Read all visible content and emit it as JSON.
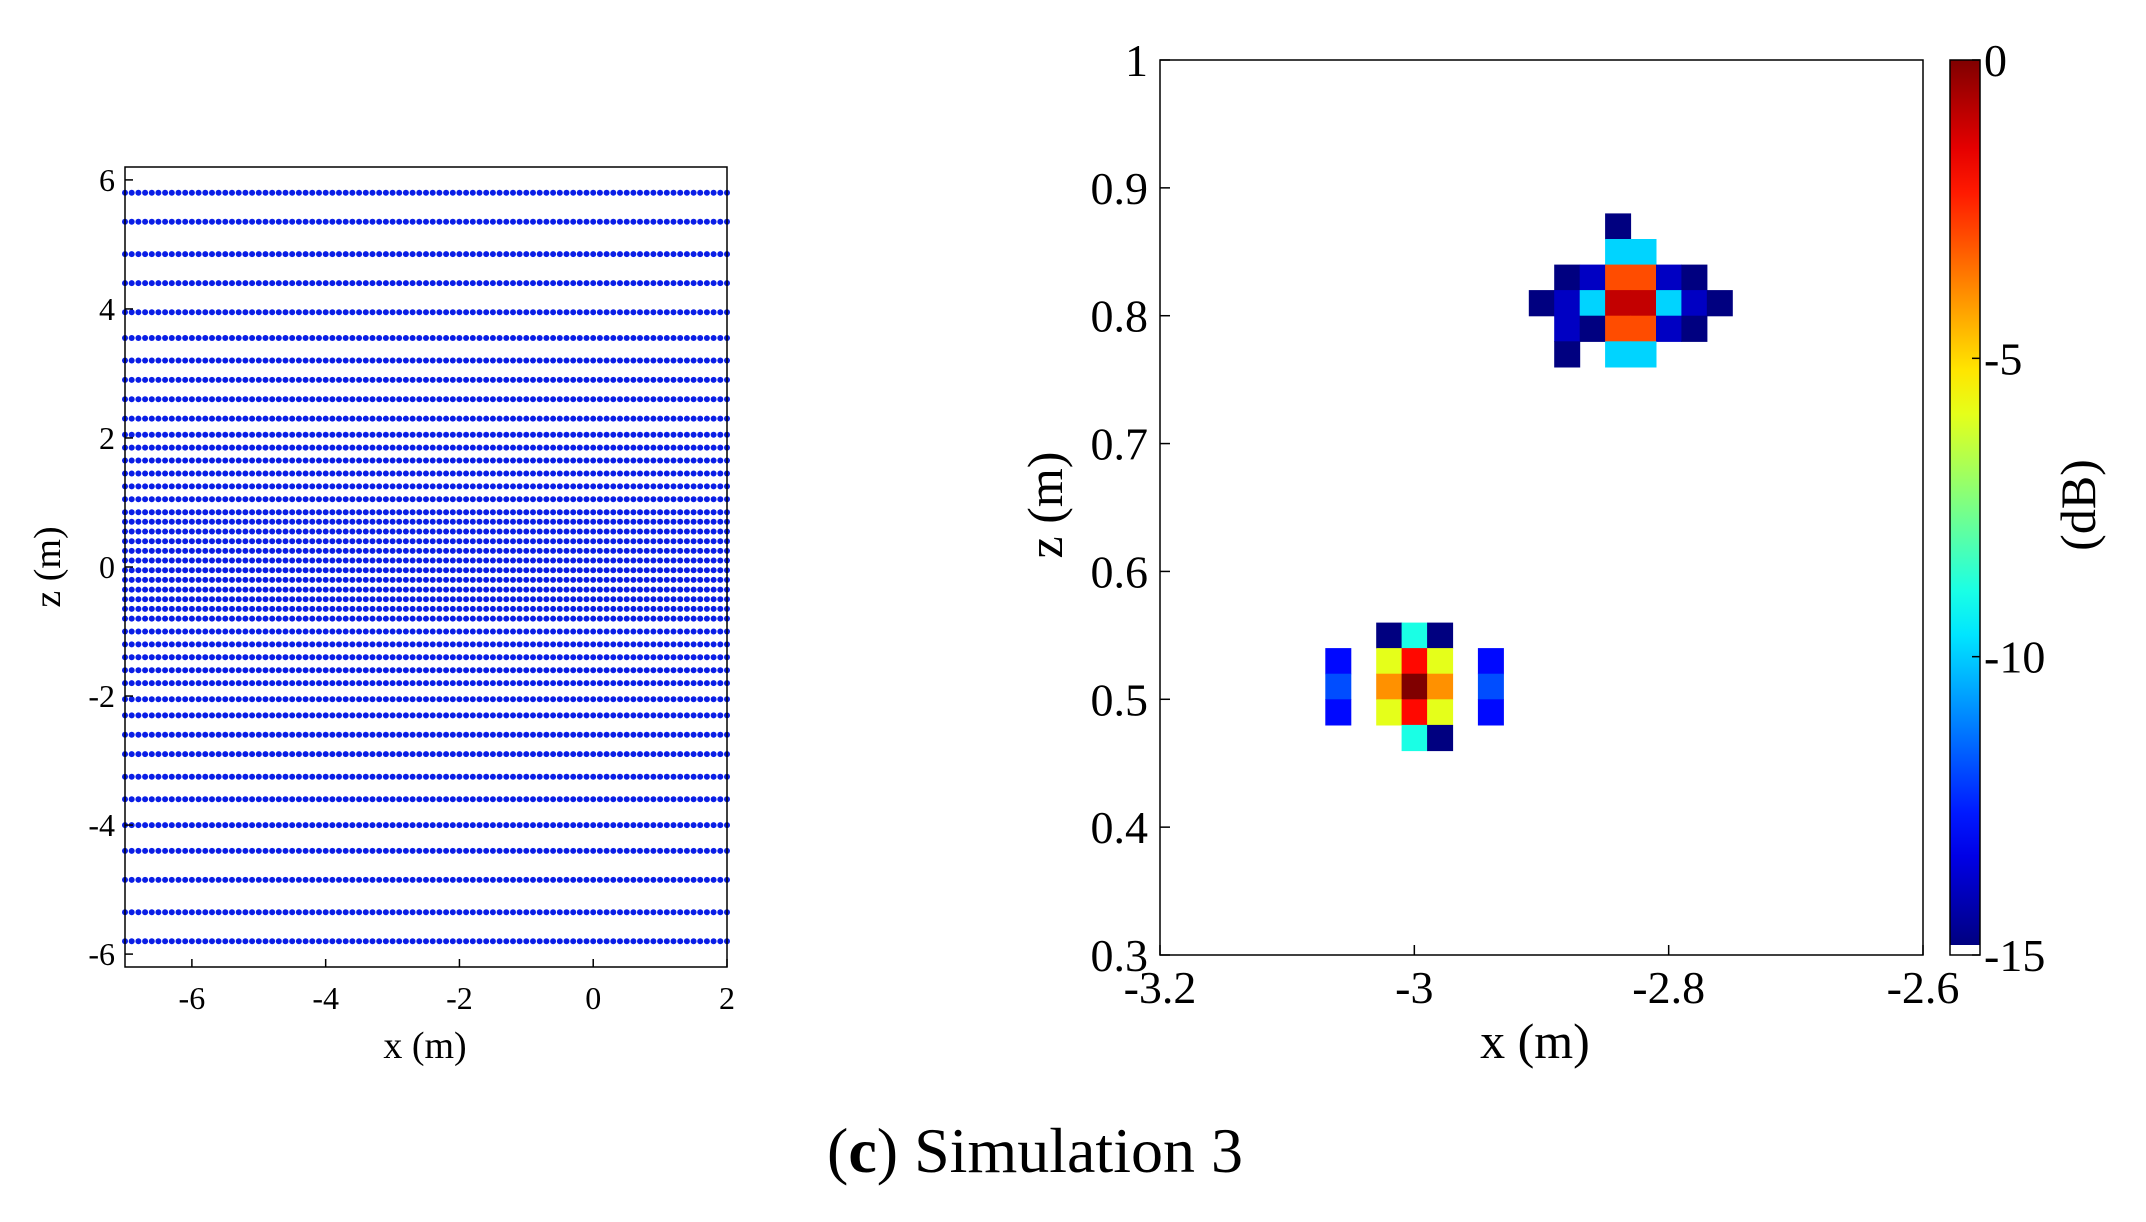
{
  "caption": {
    "letter": "c",
    "open": "(",
    "close": ")",
    "text": " Simulation 3"
  },
  "chart_data": [
    {
      "type": "scatter",
      "title": "",
      "xlabel": "x (m)",
      "ylabel": "z (m)",
      "xlim": [
        -7,
        2
      ],
      "ylim": [
        -6.2,
        6.2
      ],
      "xticks": [
        -6,
        -4,
        -2,
        0,
        2
      ],
      "yticks": [
        -6,
        -4,
        -2,
        0,
        2,
        4,
        6
      ],
      "xtick_labels": [
        "-6",
        "-4",
        "-2",
        "0",
        "2"
      ],
      "ytick_labels": [
        "-6",
        "-4",
        "-2",
        "0",
        "2",
        "4",
        "6"
      ],
      "point_color": "#0a1ee6",
      "x_points": {
        "start": -7,
        "end": 2,
        "step": 0.1
      },
      "z_rows": [
        -5.8,
        -5.35,
        -4.85,
        -4.4,
        -4.0,
        -3.6,
        -3.25,
        -2.9,
        -2.6,
        -2.3,
        -2.05,
        -1.8,
        -1.6,
        -1.4,
        -1.2,
        -1.0,
        -0.8,
        -0.65,
        -0.5,
        -0.35,
        -0.2,
        -0.05,
        0.1,
        0.25,
        0.4,
        0.55,
        0.7,
        0.85,
        1.05,
        1.25,
        1.45,
        1.65,
        1.85,
        2.05,
        2.3,
        2.6,
        2.9,
        3.2,
        3.55,
        3.95,
        4.4,
        4.85,
        5.35,
        5.8
      ]
    },
    {
      "type": "heatmap",
      "title": "",
      "xlabel": "x (m)",
      "ylabel": "z (m)",
      "xlim": [
        -3.2,
        -2.6
      ],
      "ylim": [
        0.3,
        1.0
      ],
      "xticks": [
        -3.2,
        -3.0,
        -2.8,
        -2.6
      ],
      "yticks": [
        0.3,
        0.4,
        0.5,
        0.6,
        0.7,
        0.8,
        0.9,
        1.0
      ],
      "xtick_labels": [
        "-3.2",
        "-3",
        "-2.8",
        "-2.6"
      ],
      "ytick_labels": [
        "0.3",
        "0.4",
        "0.5",
        "0.6",
        "0.7",
        "0.8",
        "0.9",
        "1"
      ],
      "cell_size": 0.02,
      "colorbar": {
        "label": "(dB)",
        "min": -15,
        "max": 0,
        "ticks": [
          0,
          -5,
          -10,
          -15
        ],
        "tick_labels": [
          "0",
          "-5",
          "-10",
          "-15"
        ]
      },
      "cells": [
        {
          "x": -2.84,
          "z": 0.87,
          "db": -15
        },
        {
          "x": -2.84,
          "z": 0.85,
          "db": -10
        },
        {
          "x": -2.82,
          "z": 0.85,
          "db": -10
        },
        {
          "x": -2.88,
          "z": 0.83,
          "db": -15
        },
        {
          "x": -2.86,
          "z": 0.83,
          "db": -14
        },
        {
          "x": -2.84,
          "z": 0.83,
          "db": -3
        },
        {
          "x": -2.82,
          "z": 0.83,
          "db": -3
        },
        {
          "x": -2.8,
          "z": 0.83,
          "db": -14
        },
        {
          "x": -2.78,
          "z": 0.83,
          "db": -15
        },
        {
          "x": -2.9,
          "z": 0.81,
          "db": -15
        },
        {
          "x": -2.88,
          "z": 0.81,
          "db": -14
        },
        {
          "x": -2.86,
          "z": 0.81,
          "db": -10
        },
        {
          "x": -2.84,
          "z": 0.81,
          "db": -1
        },
        {
          "x": -2.82,
          "z": 0.81,
          "db": -1
        },
        {
          "x": -2.8,
          "z": 0.81,
          "db": -10
        },
        {
          "x": -2.78,
          "z": 0.81,
          "db": -14
        },
        {
          "x": -2.76,
          "z": 0.81,
          "db": -15
        },
        {
          "x": -2.88,
          "z": 0.79,
          "db": -14
        },
        {
          "x": -2.86,
          "z": 0.79,
          "db": -15
        },
        {
          "x": -2.84,
          "z": 0.79,
          "db": -3
        },
        {
          "x": -2.82,
          "z": 0.79,
          "db": -3
        },
        {
          "x": -2.8,
          "z": 0.79,
          "db": -14
        },
        {
          "x": -2.78,
          "z": 0.79,
          "db": -15
        },
        {
          "x": -2.88,
          "z": 0.77,
          "db": -15
        },
        {
          "x": -2.84,
          "z": 0.77,
          "db": -10
        },
        {
          "x": -2.82,
          "z": 0.77,
          "db": -10
        },
        {
          "x": -3.02,
          "z": 0.55,
          "db": -15
        },
        {
          "x": -3.0,
          "z": 0.55,
          "db": -9
        },
        {
          "x": -2.98,
          "z": 0.55,
          "db": -15
        },
        {
          "x": -3.06,
          "z": 0.53,
          "db": -13
        },
        {
          "x": -3.02,
          "z": 0.53,
          "db": -6
        },
        {
          "x": -3.0,
          "z": 0.53,
          "db": -2
        },
        {
          "x": -2.98,
          "z": 0.53,
          "db": -6
        },
        {
          "x": -2.94,
          "z": 0.53,
          "db": -13
        },
        {
          "x": -3.06,
          "z": 0.51,
          "db": -12
        },
        {
          "x": -3.02,
          "z": 0.51,
          "db": -4
        },
        {
          "x": -3.0,
          "z": 0.51,
          "db": 0
        },
        {
          "x": -2.98,
          "z": 0.51,
          "db": -4
        },
        {
          "x": -2.94,
          "z": 0.51,
          "db": -12
        },
        {
          "x": -3.06,
          "z": 0.49,
          "db": -13
        },
        {
          "x": -3.02,
          "z": 0.49,
          "db": -6
        },
        {
          "x": -3.0,
          "z": 0.49,
          "db": -2
        },
        {
          "x": -2.98,
          "z": 0.49,
          "db": -6
        },
        {
          "x": -2.94,
          "z": 0.49,
          "db": -13
        },
        {
          "x": -3.0,
          "z": 0.47,
          "db": -9
        },
        {
          "x": -2.98,
          "z": 0.47,
          "db": -15
        }
      ]
    }
  ]
}
